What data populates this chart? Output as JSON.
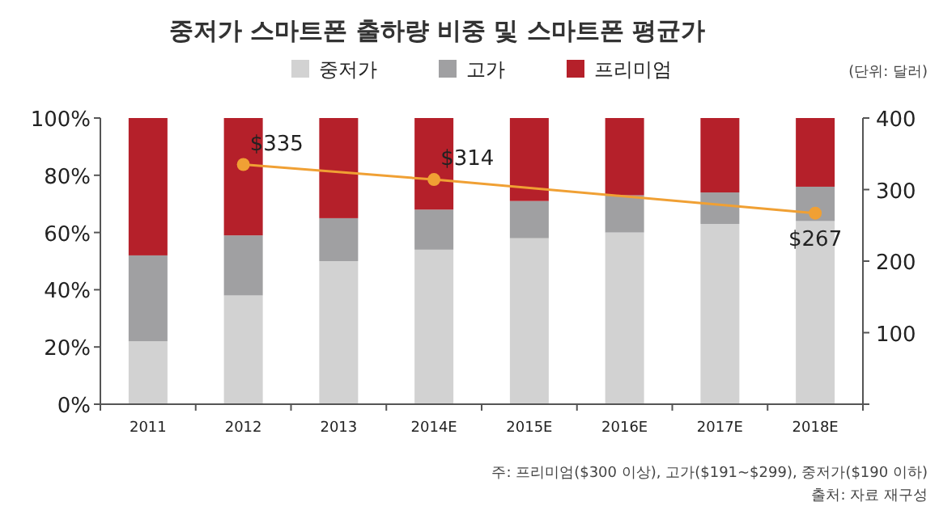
{
  "chart_data": {
    "type": "bar",
    "stacked": true,
    "title": "중저가 스마트폰 출하량 비중 및 스마트폰 평균가",
    "categories": [
      "2011",
      "2012",
      "2013",
      "2014E",
      "2015E",
      "2016E",
      "2017E",
      "2018E"
    ],
    "series": [
      {
        "name": "중저가",
        "color": "#d2d2d2",
        "values": [
          22,
          38,
          50,
          54,
          58,
          60,
          63,
          64
        ]
      },
      {
        "name": "고가",
        "color": "#a0a0a2",
        "values": [
          30,
          21,
          15,
          14,
          13,
          13,
          11,
          12
        ]
      },
      {
        "name": "프리미엄",
        "color": "#b5202a",
        "values": [
          48,
          41,
          35,
          32,
          29,
          27,
          26,
          24
        ]
      },
      {
        "type": "line",
        "axis": "y2",
        "color": "#f0a034",
        "marker": "circle",
        "values": [
          null,
          335,
          null,
          314,
          null,
          null,
          null,
          267
        ],
        "value_labels": [
          null,
          "$335",
          null,
          "$314",
          null,
          null,
          null,
          "$267"
        ]
      }
    ],
    "ylim": [
      0,
      100
    ],
    "yticks": [
      {
        "value": 0,
        "label": "0%"
      },
      {
        "value": 20,
        "label": "20%"
      },
      {
        "value": 40,
        "label": "40%"
      },
      {
        "value": 60,
        "label": "60%"
      },
      {
        "value": 80,
        "label": "80%"
      },
      {
        "value": 100,
        "label": "100%"
      }
    ],
    "y2lim": [
      0,
      400
    ],
    "y2ticks": [
      100,
      200,
      300,
      400
    ],
    "legend": "top",
    "grid": false,
    "annotations": [
      "(단위: 달러)",
      "주: 프리미엄($300 이상), 고가($191~$299), 중저가($190 이하)",
      "출처: 자료 재구성"
    ]
  }
}
